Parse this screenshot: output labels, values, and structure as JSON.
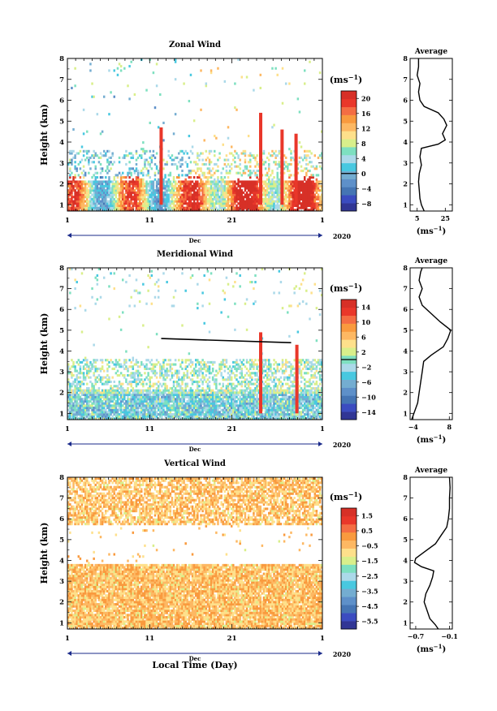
{
  "chart_data": [
    {
      "type": "heatmap",
      "title": "Zonal Wind",
      "ylabel": "Height (km)",
      "yticks": [
        "1",
        "2",
        "3",
        "4",
        "5",
        "6",
        "7",
        "8"
      ],
      "ylim": [
        0.7,
        8
      ],
      "xticks": [
        "1",
        "11",
        "21",
        "1"
      ],
      "xlim": [
        1,
        32
      ],
      "month_label": "Dec",
      "year_label": "2020",
      "colorbar": {
        "unit": "(ms",
        "unit_sup": "−1",
        "unit_close": ")",
        "ticks": [
          "20",
          "16",
          "12",
          "8",
          "4",
          "0",
          "−4",
          "−8"
        ],
        "range": [
          -10,
          22
        ],
        "colors": [
          "#313695",
          "#3b4cc0",
          "#4575b4",
          "#5e90c9",
          "#74add1",
          "#48c8e0",
          "#abd9e9",
          "#7ee0c0",
          "#d9ef8b",
          "#fee08b",
          "#fdb863",
          "#f99a3e",
          "#f46d43",
          "#e9372a",
          "#d73027"
        ],
        "zero_line": 0
      },
      "average_panel": {
        "title": "Average",
        "xticks": [
          "5",
          "25"
        ],
        "xlim": [
          0,
          30
        ],
        "xlabel": "(ms",
        "xlabel_sup": "−1",
        "xlabel_close": ")",
        "profile": [
          [
            0.7,
            10
          ],
          [
            1.0,
            8
          ],
          [
            1.3,
            7
          ],
          [
            1.7,
            6.5
          ],
          [
            2.1,
            6
          ],
          [
            2.5,
            6.5
          ],
          [
            2.9,
            8
          ],
          [
            3.3,
            7
          ],
          [
            3.7,
            8
          ],
          [
            3.9,
            20
          ],
          [
            4.1,
            25
          ],
          [
            4.4,
            23
          ],
          [
            4.8,
            26
          ],
          [
            5.1,
            24
          ],
          [
            5.4,
            20
          ],
          [
            5.7,
            10
          ],
          [
            6.0,
            7
          ],
          [
            6.4,
            6
          ],
          [
            6.8,
            7
          ],
          [
            7.2,
            5
          ],
          [
            7.6,
            6
          ],
          [
            8.0,
            6
          ]
        ]
      }
    },
    {
      "type": "heatmap",
      "title": "Meridional Wind",
      "ylabel": "Height (km)",
      "yticks": [
        "1",
        "2",
        "3",
        "4",
        "5",
        "6",
        "7",
        "8"
      ],
      "ylim": [
        0.7,
        8
      ],
      "xticks": [
        "1",
        "11",
        "21",
        "1"
      ],
      "xlim": [
        1,
        32
      ],
      "month_label": "Dec",
      "year_label": "2020",
      "colorbar": {
        "unit": "(ms",
        "unit_sup": "−1",
        "unit_close": ")",
        "ticks": [
          "14",
          "10",
          "6",
          "2",
          "−2",
          "−6",
          "−10",
          "−14"
        ],
        "range": [
          -16,
          16
        ],
        "colors": [
          "#313695",
          "#3b4cc0",
          "#4575b4",
          "#5e90c9",
          "#74add1",
          "#48c8e0",
          "#abd9e9",
          "#7ee0c0",
          "#d9ef8b",
          "#fee08b",
          "#fdb863",
          "#f99a3e",
          "#f46d43",
          "#e9372a",
          "#d73027"
        ],
        "zero_line": 0
      },
      "average_panel": {
        "title": "Average",
        "xticks": [
          "−4",
          "8"
        ],
        "xlim": [
          -5,
          9
        ],
        "xlabel": "(ms",
        "xlabel_sup": "−1",
        "xlabel_close": ")",
        "profile": [
          [
            0.7,
            -4.5
          ],
          [
            1.1,
            -3.5
          ],
          [
            1.5,
            -2.5
          ],
          [
            2.0,
            -2
          ],
          [
            2.5,
            -1.5
          ],
          [
            3.0,
            -1
          ],
          [
            3.5,
            -0.5
          ],
          [
            3.8,
            2
          ],
          [
            4.2,
            6
          ],
          [
            4.6,
            7.5
          ],
          [
            5.0,
            8.5
          ],
          [
            5.4,
            5
          ],
          [
            5.8,
            2
          ],
          [
            6.2,
            -1
          ],
          [
            6.6,
            -2
          ],
          [
            7.0,
            -1
          ],
          [
            7.4,
            -2
          ],
          [
            7.8,
            -1.5
          ],
          [
            8.0,
            -1
          ]
        ]
      }
    },
    {
      "type": "heatmap",
      "title": "Vertical Wind",
      "ylabel": "Height (km)",
      "xlabel": "Local Time (Day)",
      "yticks": [
        "1",
        "2",
        "3",
        "4",
        "5",
        "6",
        "7",
        "8"
      ],
      "ylim": [
        0.7,
        8
      ],
      "xticks": [
        "1",
        "11",
        "21",
        "1"
      ],
      "xlim": [
        1,
        32
      ],
      "month_label": "Dec",
      "year_label": "2020",
      "colorbar": {
        "unit": "(ms",
        "unit_sup": "−1",
        "unit_close": ")",
        "ticks": [
          "1.5",
          "0.5",
          "−0.5",
          "−1.5",
          "−2.5",
          "−3.5",
          "−4.5",
          "−5.5"
        ],
        "range": [
          -6,
          2
        ],
        "colors": [
          "#313695",
          "#3b4cc0",
          "#4575b4",
          "#5e90c9",
          "#74add1",
          "#48c8e0",
          "#abd9e9",
          "#7ee0c0",
          "#d9ef8b",
          "#fee08b",
          "#fdb863",
          "#f99a3e",
          "#f46d43",
          "#e9372a",
          "#d73027"
        ],
        "zero_line": null
      },
      "average_panel": {
        "title": "Average",
        "xticks": [
          "−0.7",
          "−0.1"
        ],
        "xlim": [
          -0.8,
          -0.05
        ],
        "xlabel": "(ms",
        "xlabel_sup": "−1",
        "xlabel_close": ")",
        "profile": [
          [
            0.7,
            -0.3
          ],
          [
            0.9,
            -0.35
          ],
          [
            1.2,
            -0.45
          ],
          [
            1.6,
            -0.5
          ],
          [
            2.0,
            -0.55
          ],
          [
            2.4,
            -0.52
          ],
          [
            2.8,
            -0.45
          ],
          [
            3.2,
            -0.4
          ],
          [
            3.5,
            -0.38
          ],
          [
            3.7,
            -0.6
          ],
          [
            3.9,
            -0.72
          ],
          [
            4.1,
            -0.7
          ],
          [
            4.4,
            -0.55
          ],
          [
            4.8,
            -0.35
          ],
          [
            5.2,
            -0.25
          ],
          [
            5.6,
            -0.15
          ],
          [
            6.0,
            -0.12
          ],
          [
            6.5,
            -0.1
          ],
          [
            7.0,
            -0.1
          ],
          [
            7.5,
            -0.09
          ],
          [
            8.0,
            -0.1
          ]
        ]
      }
    }
  ]
}
